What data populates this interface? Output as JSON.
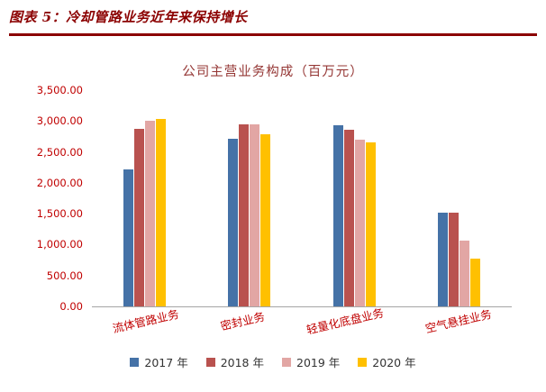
{
  "header": {
    "label": "图表 5：冷却管路业务近年来保持增长",
    "accent_color": "#8B0000"
  },
  "colors": {
    "header_red": "#8B0000",
    "chart_title_red": "#953735",
    "axis_label_red": "#C00000"
  },
  "chart_data": {
    "type": "bar",
    "title": "公司主营业务构成（百万元）",
    "categories": [
      "流体管路业务",
      "密封业务",
      "轻量化底盘业务",
      "空气悬挂业务"
    ],
    "series": [
      {
        "name": "2017 年",
        "color": "#4572A7",
        "values": [
          2220,
          2720,
          2930,
          1520
        ]
      },
      {
        "name": "2018 年",
        "color": "#B9524F",
        "values": [
          2880,
          2950,
          2860,
          1510
        ]
      },
      {
        "name": "2019 年",
        "color": "#E2A6A4",
        "values": [
          3000,
          2950,
          2700,
          1060
        ]
      },
      {
        "name": "2020 年",
        "color": "#FFC000",
        "values": [
          3030,
          2790,
          2660,
          780
        ]
      }
    ],
    "ylim": [
      0,
      3500
    ],
    "y_ticks": [
      "0.00",
      "500.00",
      "1,000.00",
      "1,500.00",
      "2,000.00",
      "2,500.00",
      "3,000.00",
      "3,500.00"
    ],
    "grid": false,
    "legend_position": "bottom"
  }
}
